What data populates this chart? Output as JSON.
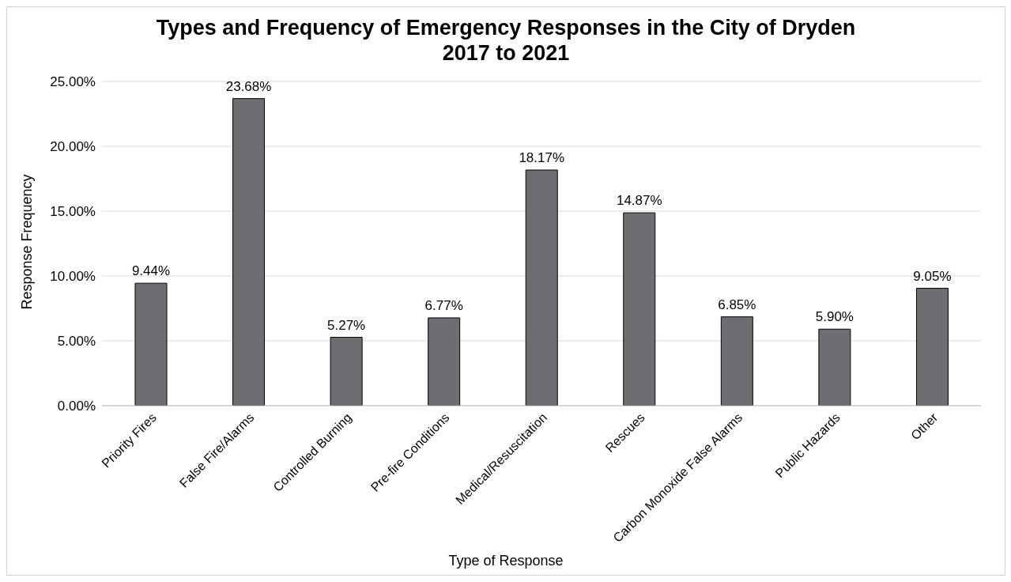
{
  "chart_data": {
    "type": "bar",
    "title": "Types and Frequency of Emergency Responses in the City of Dryden\n2017 to 2021",
    "xlabel": "Type of Response",
    "ylabel": "Response Frequency",
    "categories": [
      "Priority Fires",
      "False Fire/Alarms",
      "Controlled Burning",
      "Pre-fire Conditions",
      "Medical/Resuscitation",
      "Rescues",
      "Carbon Monoxide False Alarms",
      "Public Hazards",
      "Other"
    ],
    "values": [
      9.44,
      23.68,
      5.27,
      6.77,
      18.17,
      14.87,
      6.85,
      5.9,
      9.05
    ],
    "value_labels": [
      "9.44%",
      "23.68%",
      "5.27%",
      "6.77%",
      "18.17%",
      "14.87%",
      "6.85%",
      "5.90%",
      "9.05%"
    ],
    "color": "#6d6e71",
    "ylim": [
      0,
      25
    ],
    "yticks": [
      {
        "value": 0,
        "label": "0.00%"
      },
      {
        "value": 5,
        "label": "5.00%"
      },
      {
        "value": 10,
        "label": "10.00%"
      },
      {
        "value": 15,
        "label": "15.00%"
      },
      {
        "value": 20,
        "label": "20.00%"
      },
      {
        "value": 25,
        "label": "25.00%"
      }
    ],
    "grid": "y"
  }
}
